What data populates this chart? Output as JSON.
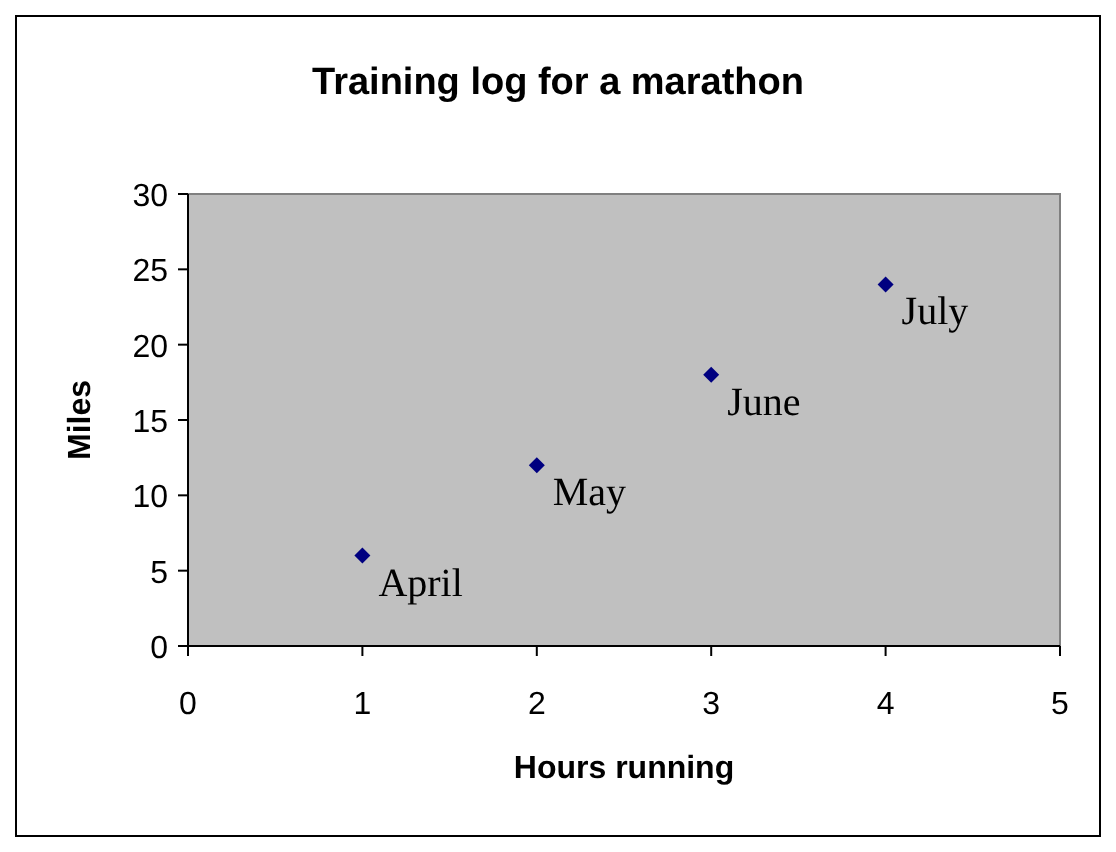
{
  "chart_data": {
    "type": "scatter",
    "title": "Training log for a marathon",
    "xlabel": "Hours running",
    "ylabel": "Miles",
    "x": [
      1,
      2,
      3,
      4
    ],
    "values": [
      6,
      12,
      18,
      24
    ],
    "color": "#000080",
    "marker": "diamond",
    "xlim": [
      0,
      5
    ],
    "ylim": [
      0,
      30
    ],
    "xticks": [
      0,
      1,
      2,
      3,
      4,
      5
    ],
    "yticks": [
      0,
      5,
      10,
      15,
      20,
      25,
      30
    ],
    "annotations": [
      {
        "text": "April",
        "x": 1,
        "y": 6
      },
      {
        "text": "May",
        "x": 2,
        "y": 12
      },
      {
        "text": "June",
        "x": 3,
        "y": 18
      },
      {
        "text": "July",
        "x": 4,
        "y": 24
      }
    ]
  }
}
